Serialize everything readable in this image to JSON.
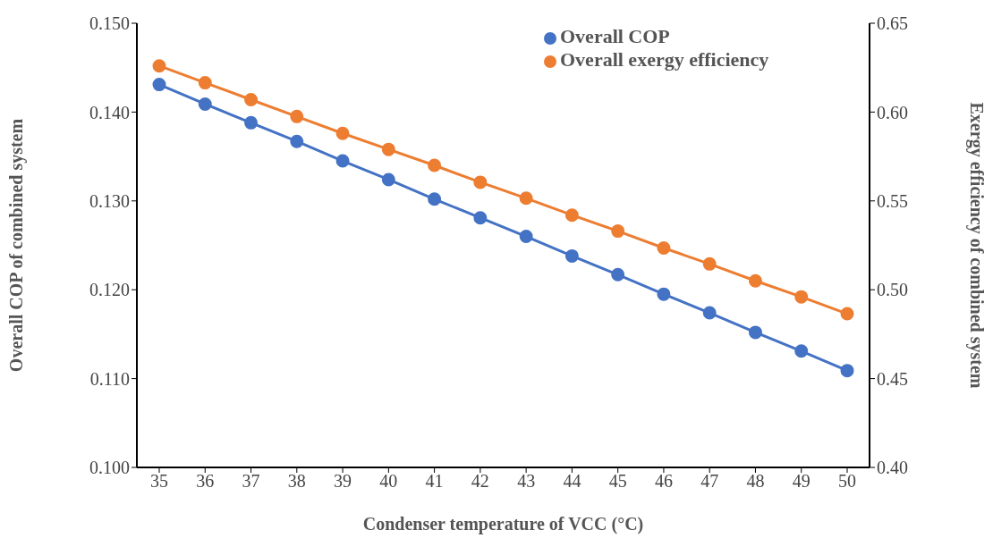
{
  "chart_data": {
    "type": "line",
    "xlabel": "Condenser temperature of VCC (°C)",
    "ylabel": "Overall COP of combined system",
    "y2label": "Exergy efficiency of combined system",
    "categories": [
      "35",
      "36",
      "37",
      "38",
      "39",
      "40",
      "41",
      "42",
      "43",
      "44",
      "45",
      "46",
      "47",
      "48",
      "49",
      "50"
    ],
    "series": [
      {
        "name": "Overall COP",
        "color": "#4472c4",
        "values": [
          0.1431,
          0.1409,
          0.1388,
          0.1367,
          0.1345,
          0.1324,
          0.1302,
          0.1281,
          0.126,
          0.1238,
          0.1217,
          0.1195,
          0.1174,
          0.1152,
          0.1131,
          0.1109
        ]
      },
      {
        "name": "Overall exergy efficiency",
        "color": "#ed7d31",
        "axis": "y2",
        "values": [
          0.626,
          0.6165,
          0.607,
          0.5975,
          0.588,
          0.579,
          0.57,
          0.5605,
          0.5515,
          0.542,
          0.533,
          0.5235,
          0.5145,
          0.505,
          0.496,
          0.4865
        ]
      }
    ],
    "ylim": [
      0.1,
      0.15
    ],
    "yticks": [
      {
        "value": 0.1,
        "label": "0.100"
      },
      {
        "value": 0.11,
        "label": "0.110"
      },
      {
        "value": 0.12,
        "label": "0.120"
      },
      {
        "value": 0.13,
        "label": "0.130"
      },
      {
        "value": 0.14,
        "label": "0.140"
      },
      {
        "value": 0.15,
        "label": "0.150"
      }
    ],
    "y2lim": [
      0.4,
      0.65
    ],
    "y2ticks": [
      {
        "value": 0.4,
        "label": "0.40"
      },
      {
        "value": 0.45,
        "label": "0.45"
      },
      {
        "value": 0.5,
        "label": "0.50"
      },
      {
        "value": 0.55,
        "label": "0.55"
      },
      {
        "value": 0.6,
        "label": "0.60"
      },
      {
        "value": 0.65,
        "label": "0.65"
      }
    ],
    "grid": false,
    "legend": "top right",
    "marker": "circle",
    "line_style": "solid"
  }
}
